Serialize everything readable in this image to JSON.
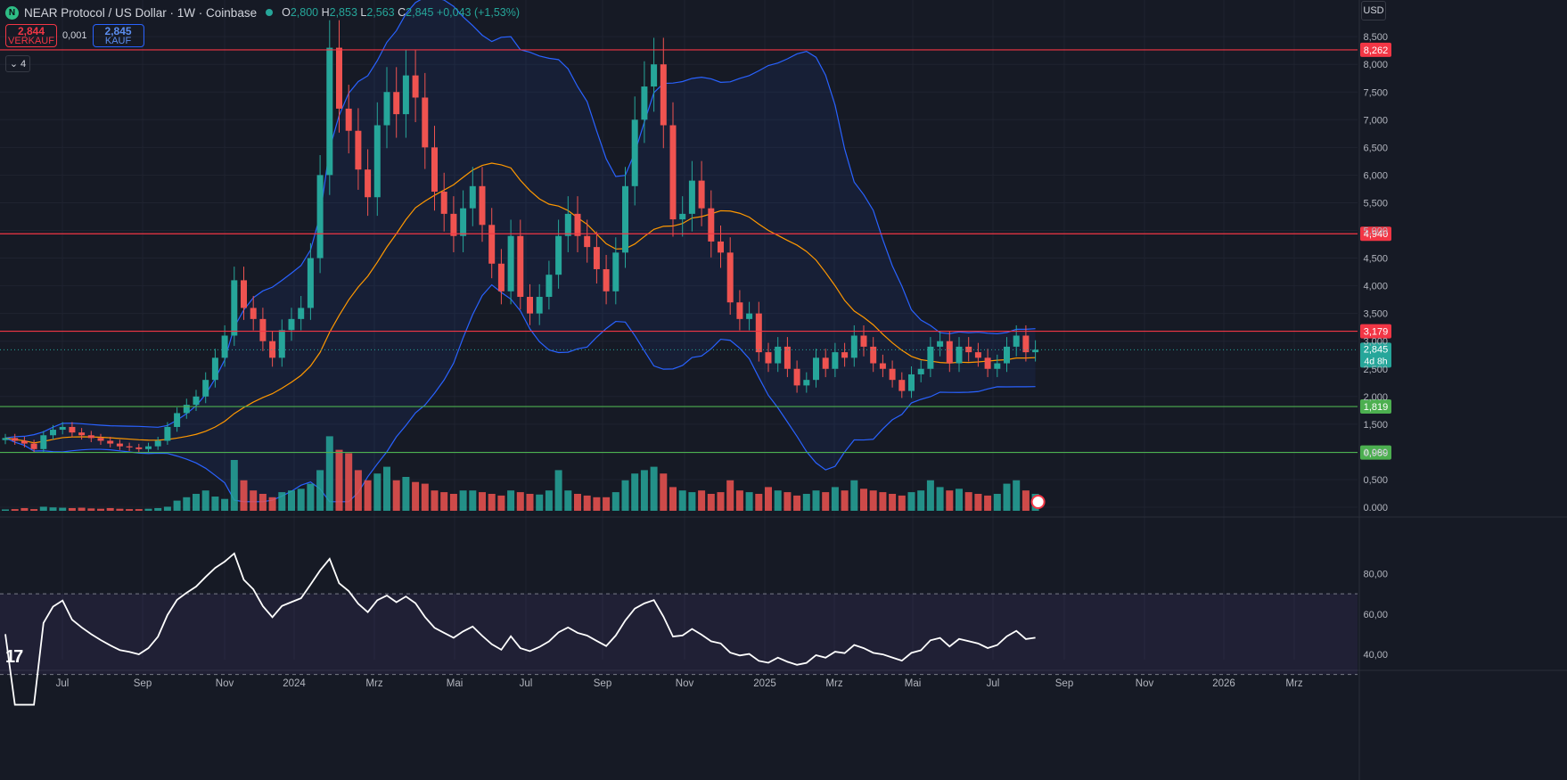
{
  "header": {
    "title": "NEAR Protocol / US Dollar · 1W · Coinbase",
    "ohlc": [
      {
        "label": "O",
        "value": "2,800"
      },
      {
        "label": "H",
        "value": "2,853"
      },
      {
        "label": "L",
        "value": "2,563"
      },
      {
        "label": "C",
        "value": "2,845"
      }
    ],
    "change": "+0,043 (+1,53%)"
  },
  "trade": {
    "sell_price": "2,844",
    "sell_label": "VERKAUF",
    "spread": "0,001",
    "buy_price": "2,845",
    "buy_label": "KAUF"
  },
  "indicators_toggle": "4",
  "currency": "USD",
  "colors": {
    "up": "#26a69a",
    "down": "#ef5350",
    "bb": "#2962ff",
    "ma": "#ff9800",
    "resistance": "#f23645",
    "support": "#4caf50",
    "rsi": "#ffffff",
    "bg": "#161a25"
  },
  "chart_data": {
    "type": "candlestick",
    "price_axis": [
      "8,500",
      "8,000",
      "7,500",
      "7,000",
      "6,500",
      "6,000",
      "5,500",
      "5,000",
      "4,500",
      "4,000",
      "3,500",
      "3,000",
      "2,500",
      "2,000",
      "1,500",
      "1,000",
      "0,500",
      "0.000"
    ],
    "time_axis": [
      "Jul",
      "Sep",
      "Nov",
      "2024",
      "Mrz",
      "Mai",
      "Jul",
      "Sep",
      "Nov",
      "2025",
      "Mrz",
      "Mai",
      "Jul",
      "Sep",
      "Nov",
      "2026",
      "Mrz"
    ],
    "horizontal_levels": [
      {
        "value": 8.262,
        "label": "8,262",
        "kind": "resistance"
      },
      {
        "value": 4.94,
        "label": "4,940",
        "kind": "resistance"
      },
      {
        "value": 3.179,
        "label": "3,179",
        "kind": "resistance"
      },
      {
        "value": 1.819,
        "label": "1,819",
        "kind": "support"
      },
      {
        "value": 0.989,
        "label": "0,989",
        "kind": "support"
      }
    ],
    "last_price": {
      "label": "2,845",
      "countdown": "4d 8h"
    },
    "closes": [
      1.25,
      1.2,
      1.15,
      1.05,
      1.3,
      1.4,
      1.45,
      1.35,
      1.3,
      1.25,
      1.2,
      1.15,
      1.1,
      1.08,
      1.05,
      1.1,
      1.2,
      1.45,
      1.7,
      1.85,
      2.0,
      2.3,
      2.7,
      3.1,
      4.1,
      3.6,
      3.4,
      3.0,
      2.7,
      3.2,
      3.4,
      3.6,
      4.5,
      6.0,
      8.3,
      7.2,
      6.8,
      6.1,
      5.6,
      6.9,
      7.5,
      7.1,
      7.8,
      7.4,
      6.5,
      5.7,
      5.3,
      4.9,
      5.4,
      5.8,
      5.1,
      4.4,
      3.9,
      4.9,
      3.8,
      3.5,
      3.8,
      4.2,
      4.9,
      5.3,
      4.9,
      4.7,
      4.3,
      3.9,
      4.6,
      5.8,
      7.0,
      7.6,
      8.0,
      6.9,
      5.2,
      5.3,
      5.9,
      5.4,
      4.8,
      4.6,
      3.7,
      3.4,
      3.5,
      2.8,
      2.6,
      2.9,
      2.5,
      2.2,
      2.3,
      2.7,
      2.5,
      2.8,
      2.7,
      3.1,
      2.9,
      2.6,
      2.5,
      2.3,
      2.1,
      2.4,
      2.5,
      2.9,
      3.0,
      2.6,
      2.9,
      2.8,
      2.7,
      2.5,
      2.6,
      2.9,
      3.1,
      2.8,
      2.845
    ],
    "volume": [
      0.04,
      0.05,
      0.08,
      0.05,
      0.12,
      0.1,
      0.09,
      0.08,
      0.09,
      0.07,
      0.06,
      0.08,
      0.06,
      0.05,
      0.05,
      0.06,
      0.08,
      0.12,
      0.3,
      0.4,
      0.5,
      0.6,
      0.42,
      0.35,
      1.5,
      0.9,
      0.6,
      0.5,
      0.4,
      0.55,
      0.6,
      0.65,
      0.8,
      1.2,
      2.2,
      1.8,
      1.7,
      1.2,
      0.9,
      1.1,
      1.3,
      0.9,
      1.0,
      0.85,
      0.8,
      0.6,
      0.55,
      0.5,
      0.6,
      0.6,
      0.55,
      0.5,
      0.45,
      0.6,
      0.55,
      0.5,
      0.48,
      0.6,
      1.2,
      0.6,
      0.5,
      0.45,
      0.4,
      0.4,
      0.55,
      0.9,
      1.1,
      1.2,
      1.3,
      1.1,
      0.7,
      0.6,
      0.55,
      0.6,
      0.5,
      0.55,
      0.9,
      0.6,
      0.55,
      0.5,
      0.7,
      0.6,
      0.55,
      0.45,
      0.5,
      0.6,
      0.55,
      0.7,
      0.6,
      0.9,
      0.65,
      0.6,
      0.55,
      0.5,
      0.45,
      0.55,
      0.6,
      0.9,
      0.7,
      0.6,
      0.65,
      0.55,
      0.5,
      0.45,
      0.5,
      0.8,
      0.9,
      0.6,
      0.5
    ],
    "rsi_axis": [
      "80,00",
      "60,00",
      "40,00"
    ],
    "rsi_bands": [
      70,
      30
    ]
  }
}
